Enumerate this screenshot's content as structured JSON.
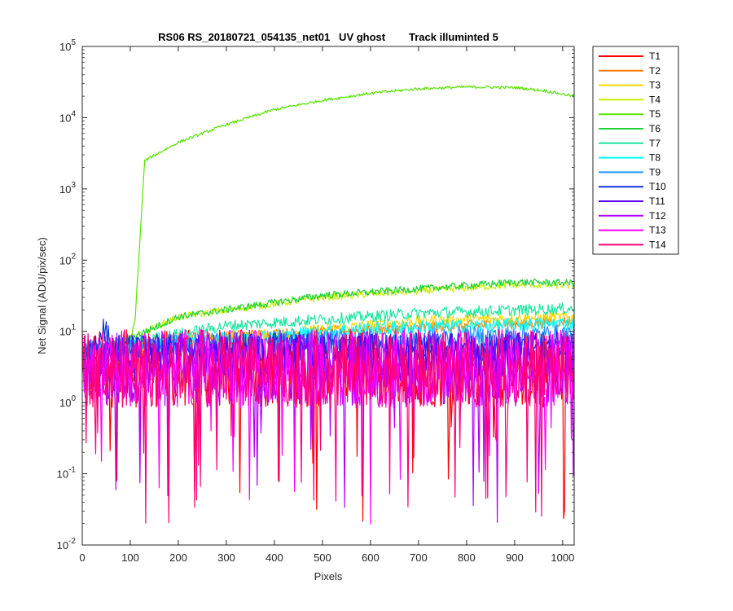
{
  "chart_data": {
    "type": "line",
    "title": "RS06 RS_20180721_054135_net01   UV ghost        Track illuminted 5",
    "xlabel": "Pixels",
    "ylabel": "Net Signal (ADU/pix/sec)",
    "xlim": [
      0,
      1024
    ],
    "ylim": [
      0.01,
      100000
    ],
    "yscale": "log",
    "xticks": [
      0,
      100,
      200,
      300,
      400,
      500,
      600,
      700,
      800,
      900,
      1000
    ],
    "xtick_labels": [
      "0",
      "100",
      "200",
      "300",
      "400",
      "500",
      "600",
      "700",
      "800",
      "900",
      "1000"
    ],
    "yticks": [
      0.01,
      0.1,
      1,
      10,
      100,
      1000,
      10000,
      100000
    ],
    "ytick_labels": [
      {
        "base": "10",
        "exp": "-2"
      },
      {
        "base": "10",
        "exp": "-1"
      },
      {
        "base": "10",
        "exp": "0"
      },
      {
        "base": "10",
        "exp": "1"
      },
      {
        "base": "10",
        "exp": "2"
      },
      {
        "base": "10",
        "exp": "3"
      },
      {
        "base": "10",
        "exp": "4"
      },
      {
        "base": "10",
        "exp": "5"
      }
    ],
    "grid": false,
    "legend": "outside-top-right",
    "series": [
      {
        "name": "T1",
        "color": "#ff0000",
        "level": [
          [
            0,
            3
          ],
          [
            1024,
            3
          ]
        ],
        "noise": 0.55
      },
      {
        "name": "T2",
        "color": "#ff7f00",
        "level": [
          [
            0,
            3
          ],
          [
            200,
            8
          ],
          [
            1024,
            14
          ]
        ],
        "noise": 0.08
      },
      {
        "name": "T3",
        "color": "#ffd700",
        "level": [
          [
            0,
            5
          ],
          [
            300,
            8
          ],
          [
            700,
            14
          ],
          [
            1024,
            16
          ]
        ],
        "noise": 0.08
      },
      {
        "name": "T4",
        "color": "#c8f000",
        "level": [
          [
            0,
            5
          ],
          [
            100,
            8
          ],
          [
            200,
            16
          ],
          [
            500,
            30
          ],
          [
            900,
            45
          ],
          [
            1024,
            44
          ]
        ],
        "noise": 0.05
      },
      {
        "name": "T5",
        "color": "#55e600",
        "level": [
          [
            0,
            1.5
          ],
          [
            40,
            1.5
          ],
          [
            100,
            7
          ],
          [
            110,
            15
          ],
          [
            130,
            2500
          ],
          [
            200,
            4500
          ],
          [
            300,
            8000
          ],
          [
            400,
            13000
          ],
          [
            500,
            17500
          ],
          [
            600,
            22000
          ],
          [
            700,
            25500
          ],
          [
            800,
            27000
          ],
          [
            900,
            26500
          ],
          [
            960,
            24000
          ],
          [
            1024,
            20000
          ]
        ],
        "noise": 0.02
      },
      {
        "name": "T6",
        "color": "#1ed23c",
        "level": [
          [
            0,
            5
          ],
          [
            100,
            8
          ],
          [
            200,
            16
          ],
          [
            500,
            32
          ],
          [
            900,
            49
          ],
          [
            1024,
            48
          ]
        ],
        "noise": 0.05
      },
      {
        "name": "T7",
        "color": "#1ee6a0",
        "level": [
          [
            0,
            5
          ],
          [
            150,
            8
          ],
          [
            300,
            12
          ],
          [
            700,
            18
          ],
          [
            1024,
            21
          ]
        ],
        "noise": 0.08
      },
      {
        "name": "T8",
        "color": "#00ffff",
        "level": [
          [
            0,
            5
          ],
          [
            200,
            7
          ],
          [
            600,
            11
          ],
          [
            1024,
            13
          ]
        ],
        "noise": 0.1
      },
      {
        "name": "T9",
        "color": "#1e96ff",
        "level": [
          [
            0,
            5
          ],
          [
            300,
            7
          ],
          [
            1024,
            9
          ]
        ],
        "noise": 0.15
      },
      {
        "name": "T10",
        "color": "#1432dc",
        "level": [
          [
            0,
            4
          ],
          [
            20,
            5
          ],
          [
            45,
            12
          ],
          [
            60,
            6
          ],
          [
            300,
            6
          ],
          [
            1024,
            6
          ]
        ],
        "noise": 0.2
      },
      {
        "name": "T11",
        "color": "#5a00ff",
        "level": [
          [
            0,
            4
          ],
          [
            1024,
            4.5
          ]
        ],
        "noise": 0.35
      },
      {
        "name": "T12",
        "color": "#b400ff",
        "level": [
          [
            0,
            3
          ],
          [
            1024,
            3
          ]
        ],
        "noise": 0.55
      },
      {
        "name": "T13",
        "color": "#ff00ff",
        "level": [
          [
            0,
            3
          ],
          [
            1024,
            3
          ]
        ],
        "noise": 0.55
      },
      {
        "name": "T14",
        "color": "#ff0078",
        "level": [
          [
            0,
            3
          ],
          [
            1024,
            3
          ]
        ],
        "noise": 0.55
      }
    ]
  }
}
